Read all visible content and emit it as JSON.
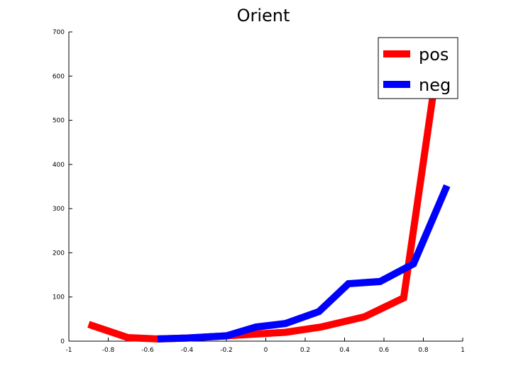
{
  "chart_data": {
    "type": "line",
    "title": "Orient",
    "xlabel": "",
    "ylabel": "",
    "xlim": [
      -1,
      1
    ],
    "ylim": [
      0,
      700
    ],
    "grid": false,
    "legend_position": "top-right",
    "x_ticks": [
      "-1",
      "-0.8",
      "-0.6",
      "-0.4",
      "-0.2",
      "0",
      "0.2",
      "0.4",
      "0.6",
      "0.8",
      "1"
    ],
    "y_ticks": [
      "0",
      "100",
      "200",
      "300",
      "400",
      "500",
      "600",
      "700"
    ],
    "series": [
      {
        "name": "pos",
        "color": "#ff0000",
        "points": [
          [
            -0.9,
            38
          ],
          [
            -0.7,
            8
          ],
          [
            -0.55,
            5
          ],
          [
            -0.4,
            7
          ],
          [
            -0.2,
            12
          ],
          [
            -0.05,
            16
          ],
          [
            0.1,
            20
          ],
          [
            0.28,
            32
          ],
          [
            0.5,
            55
          ],
          [
            0.7,
            98
          ],
          [
            0.85,
            560
          ],
          [
            0.87,
            645
          ]
        ]
      },
      {
        "name": "neg",
        "color": "#0000ff",
        "points": [
          [
            -0.55,
            5
          ],
          [
            -0.4,
            7
          ],
          [
            -0.2,
            12
          ],
          [
            -0.05,
            32
          ],
          [
            0.1,
            40
          ],
          [
            0.27,
            67
          ],
          [
            0.42,
            130
          ],
          [
            0.58,
            135
          ],
          [
            0.75,
            175
          ],
          [
            0.92,
            352
          ]
        ]
      }
    ]
  }
}
